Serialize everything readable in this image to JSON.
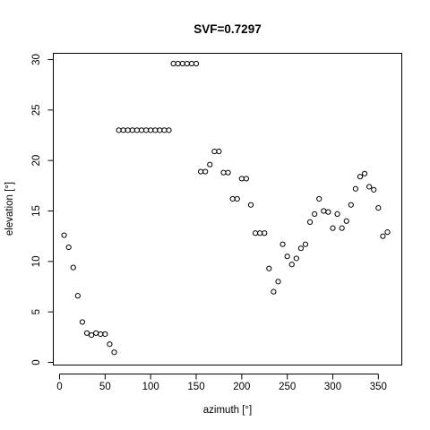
{
  "chart_data": {
    "type": "scatter",
    "title": "SVF=0.7297",
    "xlabel": "azimuth [°]",
    "ylabel": "elevation [°]",
    "xlim": [
      0,
      360
    ],
    "ylim": [
      0,
      30
    ],
    "xticks": [
      "0",
      "50",
      "100",
      "150",
      "200",
      "250",
      "300",
      "350"
    ],
    "yticks": [
      "0",
      "5",
      "10",
      "15",
      "20",
      "25",
      "30"
    ],
    "grid": false,
    "marker": "open-circle",
    "series": [
      {
        "x": [
          5,
          10,
          15,
          20,
          25,
          30,
          35,
          40,
          45,
          50,
          55,
          60,
          65,
          70,
          75,
          80,
          85,
          90,
          95,
          100,
          105,
          110,
          115,
          120,
          125,
          130,
          135,
          140,
          145,
          150,
          155,
          160,
          165,
          170,
          175,
          180,
          185,
          190,
          195,
          200,
          205,
          210,
          215,
          220,
          225,
          230,
          235,
          240,
          245,
          250,
          255,
          260,
          265,
          270,
          275,
          280,
          285,
          290,
          295,
          300,
          305,
          310,
          315,
          320,
          325,
          330,
          335,
          340,
          345,
          350,
          355,
          360
        ],
        "y": [
          12.6,
          11.4,
          9.4,
          6.6,
          4.0,
          2.9,
          2.7,
          2.9,
          2.8,
          2.8,
          1.8,
          1.0,
          23.0,
          23.0,
          23.0,
          23.0,
          23.0,
          23.0,
          23.0,
          23.0,
          23.0,
          23.0,
          23.0,
          23.0,
          29.6,
          29.6,
          29.6,
          29.6,
          29.6,
          29.6,
          18.9,
          18.9,
          19.6,
          20.9,
          20.9,
          18.8,
          18.8,
          16.2,
          16.2,
          18.2,
          18.2,
          15.6,
          12.8,
          12.8,
          12.8,
          9.3,
          7.0,
          8.0,
          11.7,
          10.5,
          9.7,
          10.3,
          11.3,
          11.7,
          13.9,
          14.7,
          16.2,
          15.0,
          14.9,
          13.3,
          14.7,
          13.3,
          14.0,
          15.6,
          17.2,
          18.4,
          18.7,
          17.4,
          17.1,
          15.3,
          12.5,
          12.9
        ]
      }
    ]
  }
}
